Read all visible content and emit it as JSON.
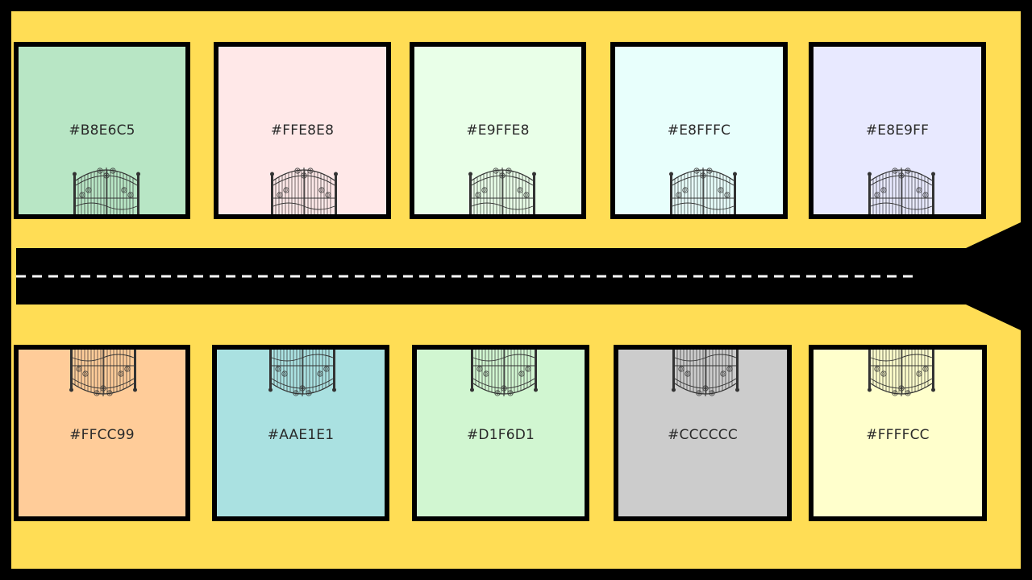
{
  "top_row": [
    {
      "hex_label": "#B8E6C5",
      "color": "#B8E6C5"
    },
    {
      "hex_label": "#FFE8E8",
      "color": "#FFE8E8"
    },
    {
      "hex_label": "#E9FFE8",
      "color": "#E9FFE8"
    },
    {
      "hex_label": "#E8FFFC",
      "color": "#E8FFFC"
    },
    {
      "hex_label": "#E8E9FF",
      "color": "#E8E9FF"
    }
  ],
  "bottom_row": [
    {
      "hex_label": "#FFCC99",
      "color": "#FFCC99"
    },
    {
      "hex_label": "#AAE1E1",
      "color": "#AAE1E1"
    },
    {
      "hex_label": "#D1F6D1",
      "color": "#D1F6D1"
    },
    {
      "hex_label": "#CCCCCC",
      "color": "#CCCCCC"
    },
    {
      "hex_label": "#FFFFCC",
      "color": "#FFFFCC"
    }
  ],
  "colors": {
    "ground": "#FFDD55",
    "road": "#000000",
    "road_marking": "#FFFFFF",
    "plot_border": "#000000"
  },
  "icons": {
    "gate": "ornate-gate-icon"
  }
}
